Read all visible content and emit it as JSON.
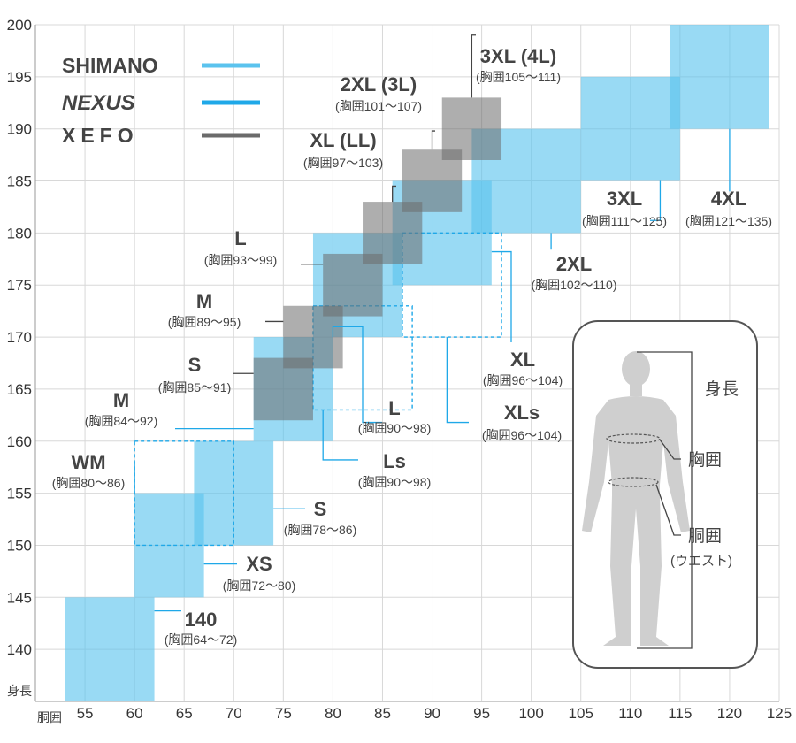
{
  "chart_data": {
    "type": "size-range-chart",
    "xlabel": "胴囲",
    "ylabel": "身長",
    "xlim": [
      50,
      125
    ],
    "ylim": [
      135,
      200
    ],
    "x_ticks": [
      55,
      60,
      65,
      70,
      75,
      80,
      85,
      90,
      95,
      100,
      105,
      110,
      115,
      120,
      125
    ],
    "y_ticks": [
      140,
      145,
      150,
      155,
      160,
      165,
      170,
      175,
      180,
      185,
      190,
      195,
      200
    ],
    "grid": true,
    "colors": {
      "shimano": "#5BC3EE",
      "nexus": "#1FA8E8",
      "xefo": "#6b6b6b"
    },
    "legend": [
      {
        "series": "shimano",
        "logo": "SHIMANO"
      },
      {
        "series": "nexus",
        "logo": "NEXUS"
      },
      {
        "series": "xefo",
        "logo": "XEFO"
      }
    ],
    "series": [
      {
        "id": "shimano",
        "style": "fill",
        "sizes": [
          {
            "name": "140",
            "chest": "(胸囲64〜72)",
            "waist": [
              53,
              62
            ],
            "height": [
              135,
              145
            ]
          },
          {
            "name": "XS",
            "chest": "(胸囲72〜80)",
            "waist": [
              60,
              67
            ],
            "height": [
              145,
              155
            ]
          },
          {
            "name": "S",
            "chest": "(胸囲78〜86)",
            "waist": [
              66,
              74
            ],
            "height": [
              150,
              160
            ]
          },
          {
            "name": "M",
            "chest": "(胸囲84〜92)",
            "waist": [
              72,
              80
            ],
            "height": [
              160,
              170
            ]
          },
          {
            "name": "L",
            "chest": "(胸囲90〜98)",
            "waist": [
              78,
              87
            ],
            "height": [
              170,
              180
            ]
          },
          {
            "name": "XL",
            "chest": "(胸囲96〜104)",
            "waist": [
              86,
              96
            ],
            "height": [
              175,
              185
            ]
          },
          {
            "name": "2XL",
            "chest": "(胸囲102〜110)",
            "waist": [
              94,
              105
            ],
            "height": [
              180,
              190
            ]
          },
          {
            "name": "3XL",
            "chest": "(胸囲111〜125)",
            "waist": [
              105,
              115
            ],
            "height": [
              185,
              195
            ]
          },
          {
            "name": "4XL",
            "chest": "(胸囲121〜135)",
            "waist": [
              114,
              124
            ],
            "height": [
              190,
              200
            ]
          }
        ]
      },
      {
        "id": "shimano-dashed",
        "style": "dashed",
        "sizes": [
          {
            "name": "WM",
            "chest": "(胸囲80〜86)",
            "waist": [
              60,
              70
            ],
            "height": [
              150,
              160
            ]
          },
          {
            "name": "Ls",
            "chest": "(胸囲90〜98)",
            "waist": [
              78,
              88
            ],
            "height": [
              163,
              173
            ]
          },
          {
            "name": "XLs",
            "chest": "(胸囲96〜104)",
            "waist": [
              87,
              97
            ],
            "height": [
              170,
              180
            ]
          }
        ]
      },
      {
        "id": "xefo",
        "style": "fill",
        "sizes": [
          {
            "name": "S",
            "chest": "(胸囲85〜91)",
            "waist": [
              72,
              78
            ],
            "height": [
              162,
              168
            ]
          },
          {
            "name": "M",
            "chest": "(胸囲89〜95)",
            "waist": [
              75,
              81
            ],
            "height": [
              167,
              173
            ]
          },
          {
            "name": "L",
            "chest": "(胸囲93〜99)",
            "waist": [
              79,
              85
            ],
            "height": [
              172,
              178
            ]
          },
          {
            "name": "XL (LL)",
            "chest": "(胸囲97〜103)",
            "waist": [
              83,
              89
            ],
            "height": [
              177,
              183
            ]
          },
          {
            "name": "2XL (3L)",
            "chest": "(胸囲101〜107)",
            "waist": [
              87,
              93
            ],
            "height": [
              182,
              188
            ]
          },
          {
            "name": "3XL (4L)",
            "chest": "(胸囲105〜111)",
            "waist": [
              91,
              97
            ],
            "height": [
              187,
              193
            ]
          }
        ]
      }
    ],
    "figure_labels": {
      "height": "身長",
      "chest": "胸囲",
      "waist": "胴囲",
      "waist_note": "(ウエスト)"
    }
  }
}
